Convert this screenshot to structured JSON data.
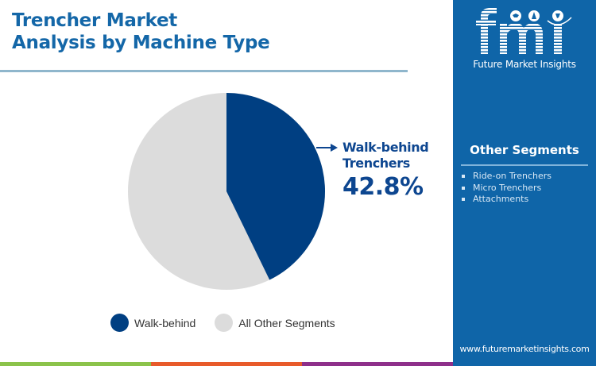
{
  "header": {
    "title_line1": "Trencher Market",
    "title_line2": "Analysis by Machine Type"
  },
  "brand": {
    "logo_text": "fmi",
    "logo_subtitle": "Future Market Insights",
    "website": "www.futuremarketinsights.com",
    "colors": {
      "sidebar": "#0f65a8",
      "title": "#1467a8",
      "primary_slice": "#003f82",
      "other_slice": "#dcdcdc"
    }
  },
  "callout": {
    "label_line1": "Walk-behind",
    "label_line2": "Trenchers",
    "value": "42.8%"
  },
  "other_segments": {
    "title": "Other Segments",
    "items": [
      "Ride-on Trenchers",
      "Micro Trenchers",
      "Attachments"
    ]
  },
  "legend": {
    "items": [
      {
        "label": "Walk-behind",
        "color": "#003f82"
      },
      {
        "label": "All Other Segments",
        "color": "#dcdcdc"
      }
    ]
  },
  "bottom_bar_colors": [
    "#8bc34a",
    "#e85a2a",
    "#8e2f8a"
  ],
  "chart_data": {
    "type": "pie",
    "title": "Trencher Market Analysis by Machine Type",
    "categories": [
      "Walk-behind",
      "All Other Segments"
    ],
    "values": [
      42.8,
      57.2
    ],
    "colors": [
      "#003f82",
      "#dcdcdc"
    ],
    "start_angle": "12 o'clock, clockwise",
    "annotations": [
      {
        "label": "Walk-behind Trenchers",
        "value": "42.8%"
      }
    ],
    "legend_position": "bottom"
  }
}
